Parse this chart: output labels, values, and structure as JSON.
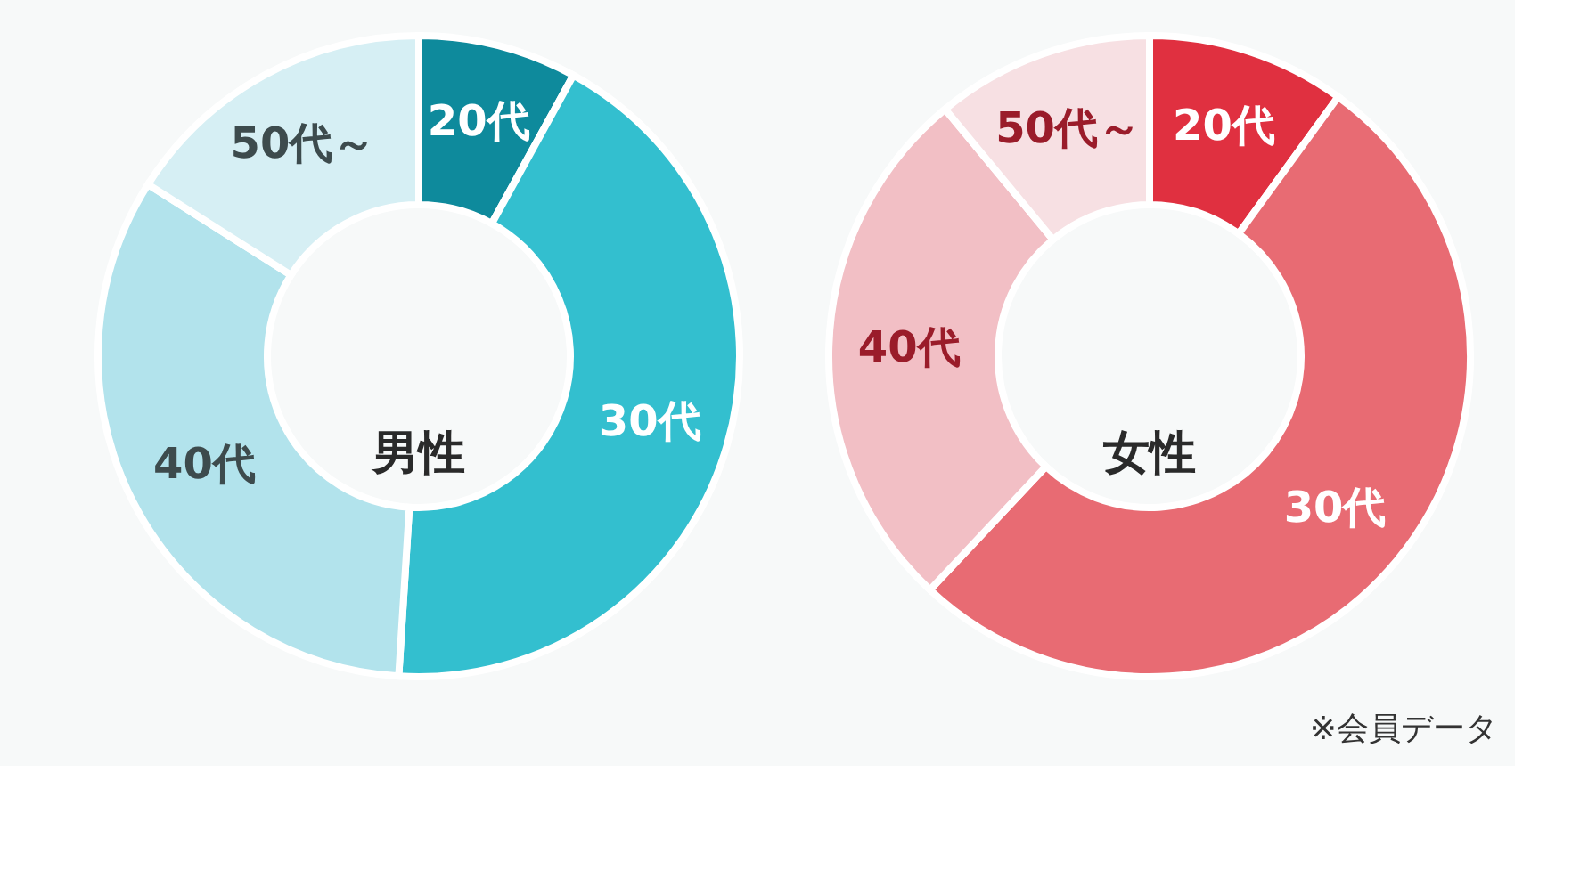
{
  "chart_data": [
    {
      "type": "donut",
      "title": "男性",
      "categories": [
        "20代",
        "30代",
        "40代",
        "50代～"
      ],
      "values": [
        8,
        43,
        33,
        16
      ],
      "colors": [
        "#0e8a9c",
        "#33bfcf",
        "#b2e3ec",
        "#d6eff4"
      ]
    },
    {
      "type": "donut",
      "title": "女性",
      "categories": [
        "20代",
        "30代",
        "40代",
        "50代～"
      ],
      "values": [
        10,
        52,
        27,
        11
      ],
      "colors": [
        "#e03040",
        "#e86b73",
        "#f2bfc5",
        "#f7e0e3"
      ],
      "annotations": [
        "※会員データ"
      ]
    }
  ]
}
